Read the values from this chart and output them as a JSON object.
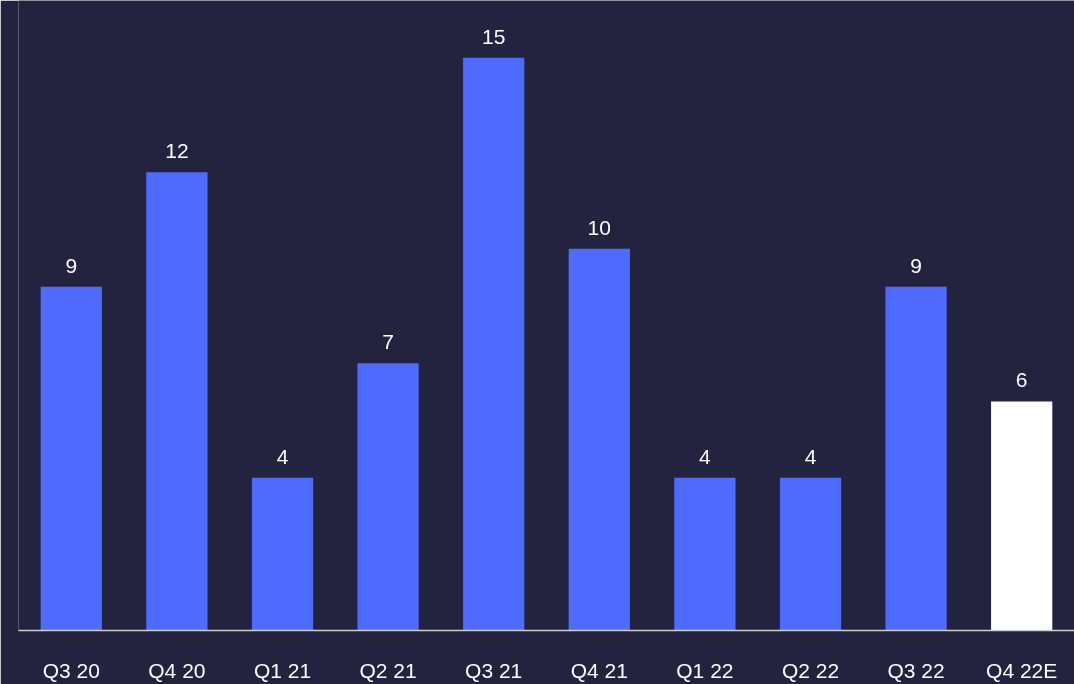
{
  "chart_data": {
    "type": "bar",
    "categories": [
      "Q3 20",
      "Q4 20",
      "Q1 21",
      "Q2 21",
      "Q3 21",
      "Q4 21",
      "Q1 22",
      "Q2 22",
      "Q3 22",
      "Q4 22E"
    ],
    "values": [
      9,
      12,
      4,
      7,
      15,
      10,
      4,
      4,
      9,
      6
    ],
    "colors": [
      "#4f6bff",
      "#4f6bff",
      "#4f6bff",
      "#4f6bff",
      "#4f6bff",
      "#4f6bff",
      "#4f6bff",
      "#4f6bff",
      "#4f6bff",
      "#ffffff"
    ],
    "data_labels": true
  }
}
